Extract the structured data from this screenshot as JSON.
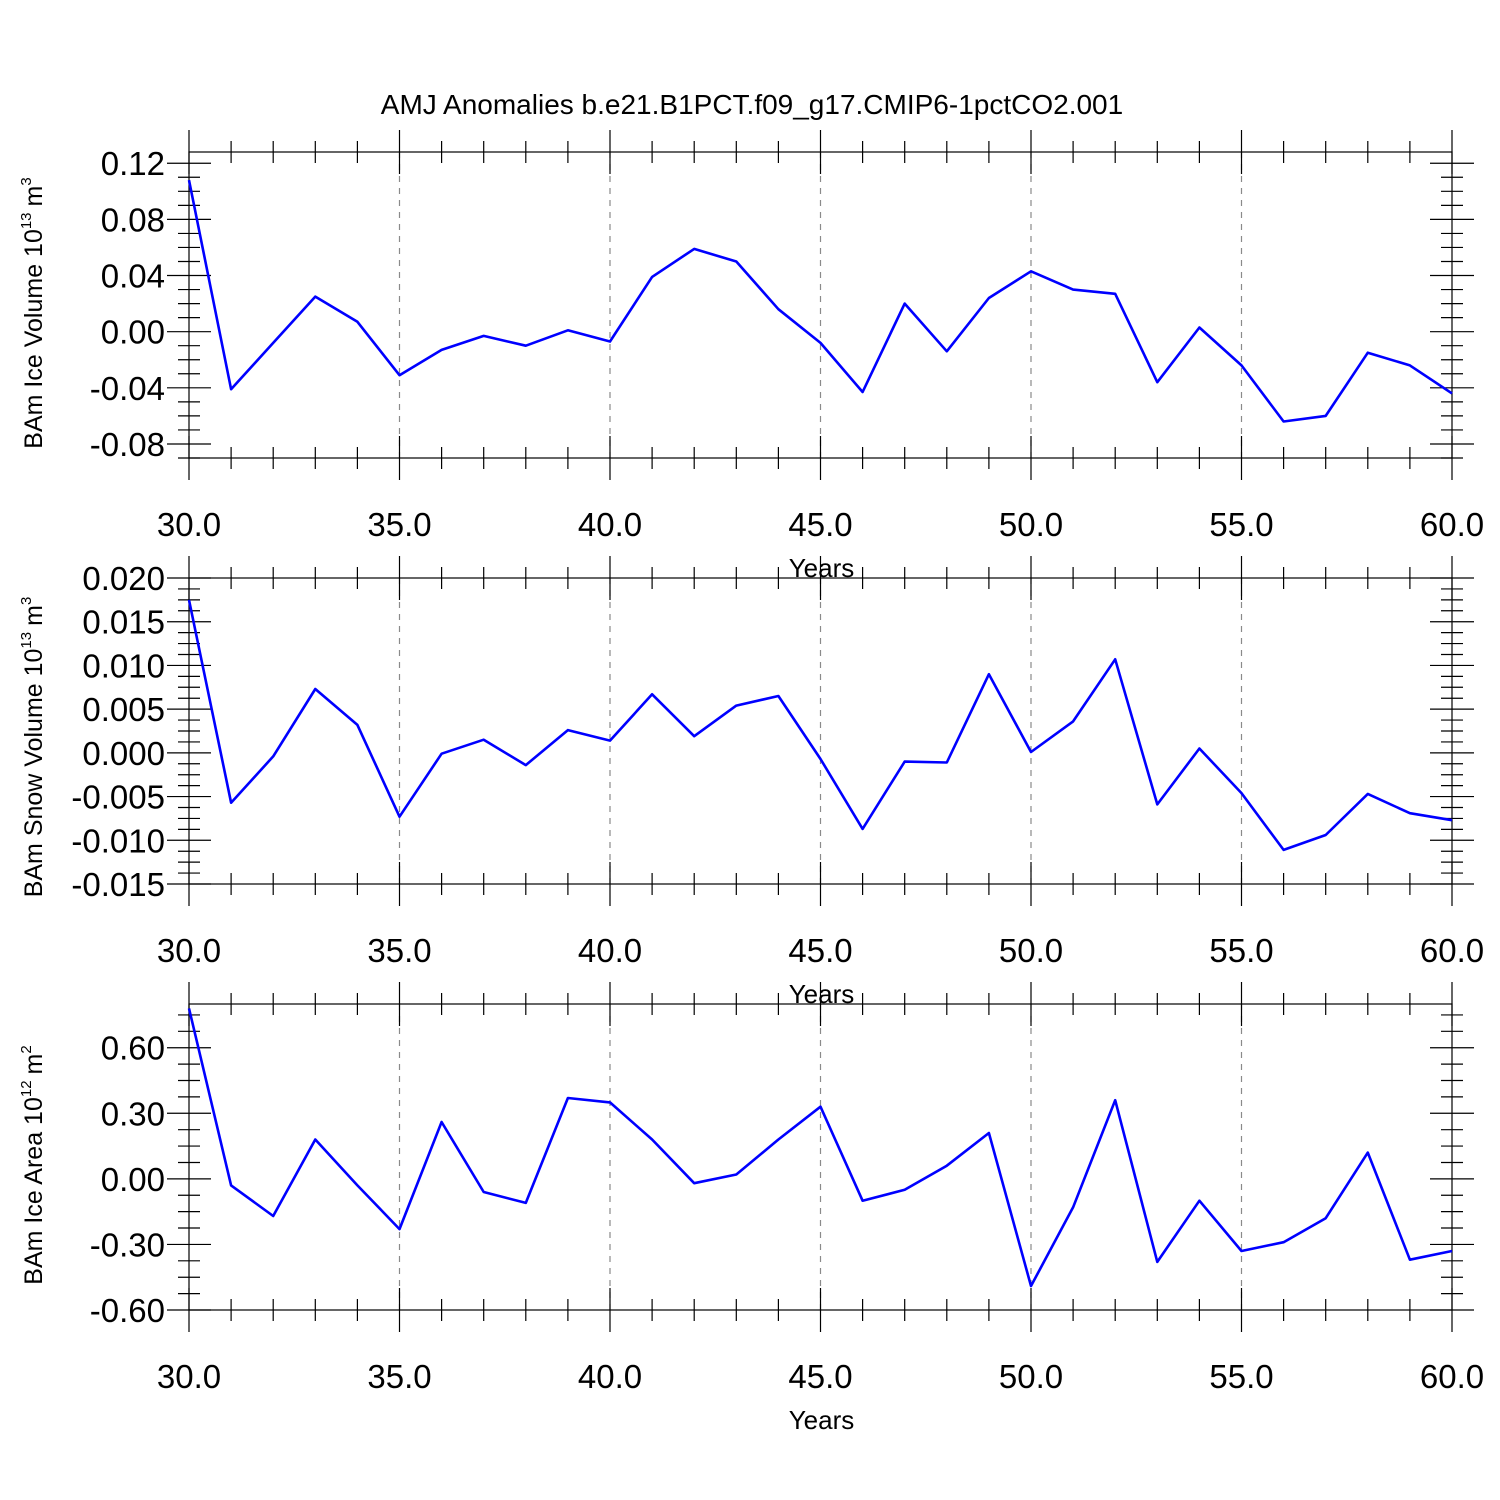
{
  "title": "AMJ Anomalies b.e21.B1PCT.f09_g17.CMIP6-1pctCO2.001",
  "colors": {
    "series": "#0000ff",
    "grid": "#8a8a8a",
    "frame": "#000000"
  },
  "chart_data": [
    {
      "type": "line",
      "title": "",
      "xlabel": "Years",
      "ylabel": {
        "text": "BAm Ice Volume 10",
        "exp": "13",
        "unit": "m",
        "unit_exp": "3"
      },
      "xlim": [
        30,
        60
      ],
      "ylim": [
        -0.09,
        0.128
      ],
      "grid": {
        "x": "dashed at major ticks",
        "y": "off"
      },
      "x_ticks": [
        30,
        35,
        40,
        45,
        50,
        55,
        60
      ],
      "x_tick_labels": [
        "30.0",
        "35.0",
        "40.0",
        "45.0",
        "50.0",
        "55.0",
        "60.0"
      ],
      "y_ticks": [
        0.12,
        0.08,
        0.04,
        0.0,
        -0.04,
        -0.08
      ],
      "y_tick_labels": [
        "0.12",
        "0.08",
        "0.04",
        "0.00",
        "-0.04",
        "-0.08"
      ],
      "x": [
        30,
        31,
        32,
        33,
        34,
        35,
        36,
        37,
        38,
        39,
        40,
        41,
        42,
        43,
        44,
        45,
        46,
        47,
        48,
        49,
        50,
        51,
        52,
        53,
        54,
        55,
        56,
        57,
        58,
        59,
        60
      ],
      "series": [
        {
          "values": [
            0.108,
            -0.041,
            -0.008,
            0.025,
            0.007,
            -0.031,
            -0.013,
            -0.003,
            -0.01,
            0.001,
            -0.007,
            0.039,
            0.059,
            0.05,
            0.016,
            -0.008,
            -0.043,
            0.02,
            -0.014,
            0.024,
            0.043,
            0.03,
            0.027,
            -0.036,
            0.003,
            -0.024,
            -0.064,
            -0.06,
            -0.015,
            -0.024,
            -0.044
          ]
        }
      ]
    },
    {
      "type": "line",
      "title": "",
      "xlabel": "Years",
      "ylabel": {
        "text": "BAm Snow Volume 10",
        "exp": "13",
        "unit": "m",
        "unit_exp": "3"
      },
      "xlim": [
        30,
        60
      ],
      "ylim": [
        -0.015,
        0.02
      ],
      "grid": {
        "x": "dashed at major ticks",
        "y": "off"
      },
      "x_ticks": [
        30,
        35,
        40,
        45,
        50,
        55,
        60
      ],
      "x_tick_labels": [
        "30.0",
        "35.0",
        "40.0",
        "45.0",
        "50.0",
        "55.0",
        "60.0"
      ],
      "y_ticks": [
        0.02,
        0.015,
        0.01,
        0.005,
        0.0,
        -0.005,
        -0.01,
        -0.015
      ],
      "y_tick_labels": [
        "0.020",
        "0.015",
        "0.010",
        "0.005",
        "0.000",
        "-0.005",
        "-0.010",
        "-0.015"
      ],
      "x": [
        30,
        31,
        32,
        33,
        34,
        35,
        36,
        37,
        38,
        39,
        40,
        41,
        42,
        43,
        44,
        45,
        46,
        47,
        48,
        49,
        50,
        51,
        52,
        53,
        54,
        55,
        56,
        57,
        58,
        59,
        60
      ],
      "series": [
        {
          "values": [
            0.0175,
            -0.0057,
            -0.0004,
            0.0073,
            0.0032,
            -0.0073,
            -0.0001,
            0.0015,
            -0.0014,
            0.0026,
            0.0014,
            0.0067,
            0.0019,
            0.0054,
            0.0065,
            -0.0007,
            -0.0087,
            -0.001,
            -0.0011,
            0.009,
            0.0001,
            0.0036,
            0.0107,
            -0.0059,
            0.0005,
            -0.0046,
            -0.0111,
            -0.0094,
            -0.0047,
            -0.0069,
            -0.0077
          ]
        }
      ]
    },
    {
      "type": "line",
      "title": "",
      "xlabel": "Years",
      "ylabel": {
        "text": "BAm Ice Area 10",
        "exp": "12",
        "unit": "m",
        "unit_exp": "2"
      },
      "xlim": [
        30,
        60
      ],
      "ylim": [
        -0.6,
        0.8
      ],
      "grid": {
        "x": "dashed at major ticks",
        "y": "off"
      },
      "x_ticks": [
        30,
        35,
        40,
        45,
        50,
        55,
        60
      ],
      "x_tick_labels": [
        "30.0",
        "35.0",
        "40.0",
        "45.0",
        "50.0",
        "55.0",
        "60.0"
      ],
      "y_ticks": [
        0.6,
        0.3,
        0.0,
        -0.3,
        -0.6
      ],
      "y_tick_labels": [
        "0.60",
        "0.30",
        "0.00",
        "-0.30",
        "-0.60"
      ],
      "x": [
        30,
        31,
        32,
        33,
        34,
        35,
        36,
        37,
        38,
        39,
        40,
        41,
        42,
        43,
        44,
        45,
        46,
        47,
        48,
        49,
        50,
        51,
        52,
        53,
        54,
        55,
        56,
        57,
        58,
        59,
        60
      ],
      "series": [
        {
          "values": [
            0.78,
            -0.03,
            -0.17,
            0.18,
            -0.03,
            -0.23,
            0.26,
            -0.06,
            -0.11,
            0.37,
            0.35,
            0.18,
            -0.02,
            0.02,
            0.18,
            0.33,
            -0.1,
            -0.05,
            0.06,
            0.21,
            -0.49,
            -0.13,
            0.36,
            -0.38,
            -0.1,
            -0.33,
            -0.29,
            -0.18,
            0.12,
            -0.37,
            -0.33
          ]
        }
      ]
    }
  ]
}
